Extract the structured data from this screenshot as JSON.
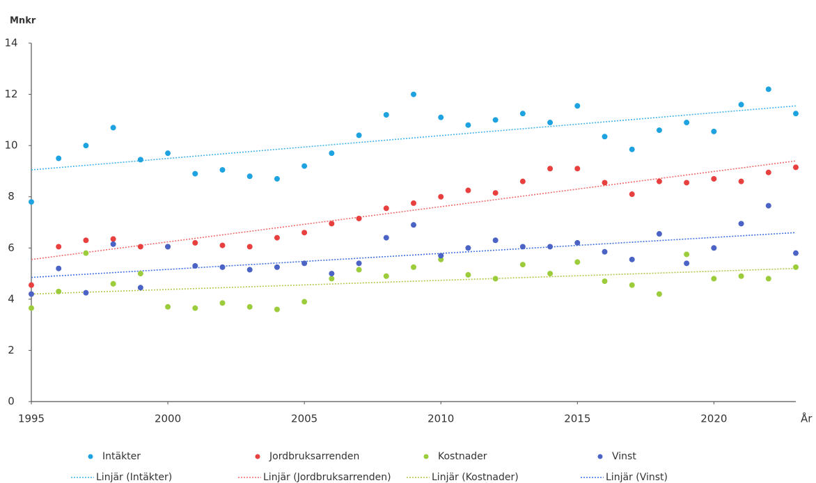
{
  "chart_data": {
    "type": "scatter",
    "y_label": "Mnkr",
    "x_label": "År",
    "x": [
      1995,
      1996,
      1997,
      1998,
      1999,
      2000,
      2001,
      2002,
      2003,
      2004,
      2005,
      2006,
      2007,
      2008,
      2009,
      2010,
      2011,
      2012,
      2013,
      2014,
      2015,
      2016,
      2017,
      2018,
      2019,
      2020,
      2021,
      2022,
      2023
    ],
    "xlim": [
      1995,
      2023
    ],
    "xticks": [
      1995,
      2000,
      2005,
      2010,
      2015,
      2020
    ],
    "ylim": [
      0,
      14
    ],
    "yticks": [
      0,
      2,
      4,
      6,
      8,
      10,
      12,
      14
    ],
    "grid": false,
    "trend_x": [
      1995,
      2023
    ],
    "series": [
      {
        "name": "Intäkter",
        "color": "#1fa3e0",
        "values": [
          7.8,
          9.5,
          10.0,
          10.7,
          9.45,
          9.7,
          8.9,
          9.05,
          8.8,
          8.7,
          9.2,
          9.7,
          10.4,
          11.2,
          12.0,
          11.1,
          10.8,
          11.0,
          11.25,
          10.9,
          11.55,
          10.35,
          9.85,
          10.6,
          10.9,
          10.55,
          11.6,
          12.2,
          11.25
        ],
        "trend": {
          "name": "Linjär (Intäkter)",
          "color": "#3fb3ea",
          "values": [
            9.05,
            11.55
          ]
        }
      },
      {
        "name": "Jordbruksarrenden",
        "color": "#e8403f",
        "values": [
          4.55,
          6.05,
          6.3,
          6.35,
          6.05,
          6.05,
          6.2,
          6.1,
          6.05,
          6.4,
          6.6,
          6.95,
          7.15,
          7.55,
          7.75,
          8.0,
          8.25,
          8.15,
          8.6,
          9.1,
          9.1,
          8.55,
          8.1,
          8.6,
          8.55,
          8.7,
          8.6,
          8.95,
          9.15
        ],
        "trend": {
          "name": "Linjär (Jordbruksarrenden)",
          "color": "#f06a6a",
          "values": [
            5.55,
            9.4
          ]
        }
      },
      {
        "name": "Kostnader",
        "color": "#9ccc3c",
        "values": [
          3.65,
          4.3,
          5.8,
          4.6,
          5.0,
          3.7,
          3.65,
          3.85,
          3.7,
          3.6,
          3.9,
          4.8,
          5.15,
          4.9,
          5.25,
          5.55,
          4.95,
          4.8,
          5.35,
          5.0,
          5.45,
          4.7,
          4.55,
          4.2,
          5.75,
          4.8,
          4.9,
          4.8,
          5.25
        ],
        "trend": {
          "name": "Linjär (Kostnader)",
          "color": "#b8c34a",
          "values": [
            4.2,
            5.2
          ]
        }
      },
      {
        "name": "Vinst",
        "color": "#4a63c4",
        "values": [
          4.2,
          5.2,
          4.25,
          6.15,
          4.45,
          6.05,
          5.3,
          5.25,
          5.15,
          5.25,
          5.4,
          5.0,
          5.4,
          6.4,
          6.9,
          5.7,
          6.0,
          6.3,
          6.05,
          6.05,
          6.2,
          5.85,
          5.55,
          6.55,
          5.4,
          6.0,
          6.95,
          7.65,
          5.8
        ],
        "trend": {
          "name": "Linjär (Vinst)",
          "color": "#3d6fe0",
          "values": [
            4.85,
            6.6
          ]
        }
      }
    ]
  }
}
